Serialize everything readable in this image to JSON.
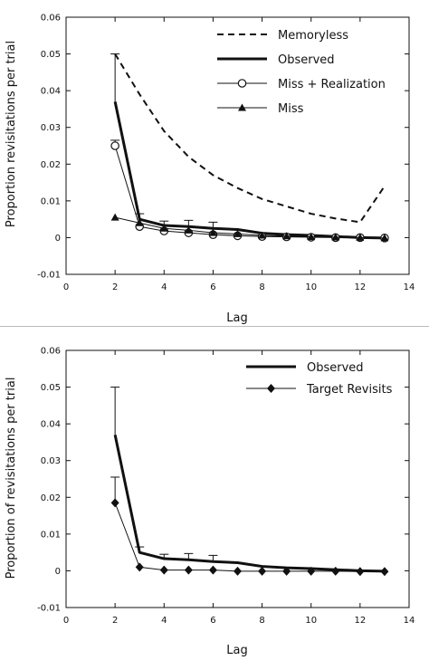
{
  "chart_data": [
    {
      "type": "line",
      "xlabel": "Lag",
      "ylabel": "Proportion revisitations per trial",
      "xlim": [
        0,
        14
      ],
      "ylim": [
        -0.01,
        0.06
      ],
      "xticks": [
        "0",
        "2",
        "4",
        "6",
        "8",
        "10",
        "12",
        "14"
      ],
      "yticks": [
        "-0.01",
        "0",
        "0.01",
        "0.02",
        "0.03",
        "0.04",
        "0.05",
        "0.06"
      ],
      "legend": "top-right",
      "series": [
        {
          "name": "Memoryless",
          "style": "dashed",
          "marker": "none",
          "x": [
            2,
            3,
            4,
            5,
            6,
            7,
            8,
            9,
            10,
            11,
            12,
            13
          ],
          "values": [
            0.05,
            0.039,
            0.029,
            0.022,
            0.017,
            0.0135,
            0.0105,
            0.0085,
            0.0065,
            0.0052,
            0.0042,
            0.014
          ]
        },
        {
          "name": "Observed",
          "style": "thick",
          "marker": "none",
          "x": [
            2,
            3,
            4,
            5,
            6,
            7,
            8,
            9,
            10,
            11,
            12,
            13
          ],
          "values": [
            0.037,
            0.005,
            0.0033,
            0.003,
            0.0025,
            0.0022,
            0.0012,
            0.0008,
            0.0006,
            0.0003,
            0.0,
            -0.0001
          ],
          "errors": [
            0.013,
            0.0015,
            0.0012,
            0.0017,
            0.0017,
            0,
            0,
            0,
            0,
            0,
            0,
            0
          ]
        },
        {
          "name": "Miss + Realization",
          "style": "thin",
          "marker": "circle",
          "x": [
            2,
            3,
            4,
            5,
            6,
            7,
            8,
            9,
            10,
            11,
            12,
            13
          ],
          "values": [
            0.025,
            0.003,
            0.0018,
            0.0013,
            0.0008,
            0.0005,
            0.0003,
            0.0002,
            0.0001,
            0.0,
            0.0,
            -0.0001
          ],
          "errors": [
            0.0015,
            0,
            0,
            0,
            0,
            0,
            0,
            0,
            0,
            0,
            0,
            0
          ]
        },
        {
          "name": "Miss",
          "style": "thin",
          "marker": "triangle",
          "x": [
            2,
            3,
            4,
            5,
            6,
            7,
            8,
            9,
            10,
            11,
            12,
            13
          ],
          "values": [
            0.0055,
            0.004,
            0.0025,
            0.002,
            0.0013,
            0.001,
            0.0006,
            0.0004,
            0.0002,
            0.0001,
            0.0,
            -0.0001
          ]
        }
      ]
    },
    {
      "type": "line",
      "xlabel": "Lag",
      "ylabel": "Proportion of revisitations per trial",
      "xlim": [
        0,
        14
      ],
      "ylim": [
        -0.01,
        0.06
      ],
      "xticks": [
        "0",
        "2",
        "4",
        "6",
        "8",
        "10",
        "12",
        "14"
      ],
      "yticks": [
        "-0.01",
        "0",
        "0.01",
        "0.02",
        "0.03",
        "0.04",
        "0.05",
        "0.06"
      ],
      "legend": "top-right",
      "series": [
        {
          "name": "Observed",
          "style": "thick",
          "marker": "none",
          "x": [
            2,
            3,
            4,
            5,
            6,
            7,
            8,
            9,
            10,
            11,
            12,
            13
          ],
          "values": [
            0.037,
            0.005,
            0.0033,
            0.003,
            0.0025,
            0.0022,
            0.0012,
            0.0008,
            0.0006,
            0.0003,
            0.0,
            -0.0001
          ],
          "errors": [
            0.013,
            0.0015,
            0.0012,
            0.0017,
            0.0017,
            0,
            0,
            0,
            0,
            0,
            0,
            0
          ]
        },
        {
          "name": "Target Revisits",
          "style": "thin",
          "marker": "diamond",
          "x": [
            2,
            3,
            4,
            5,
            6,
            7,
            8,
            9,
            10,
            11,
            12,
            13
          ],
          "values": [
            0.0185,
            0.001,
            0.0002,
            0.0002,
            0.0002,
            -0.0001,
            -0.0001,
            -0.0001,
            -0.0001,
            -0.0001,
            -0.0002,
            -0.0002
          ],
          "errors": [
            0.007,
            0,
            0,
            0,
            0,
            0,
            0,
            0,
            0,
            0,
            0,
            0
          ]
        }
      ]
    }
  ]
}
